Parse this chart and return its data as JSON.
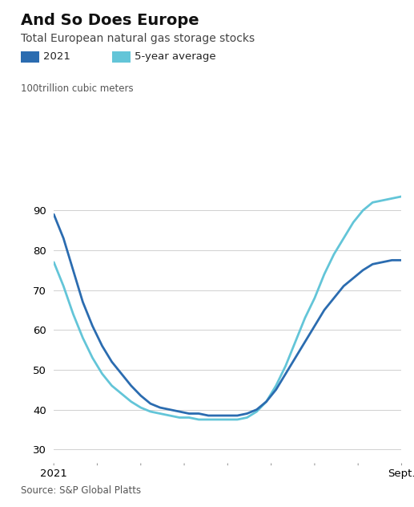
{
  "title": "And So Does Europe",
  "subtitle": "Total European natural gas storage stocks",
  "ylabel": "100trillion cubic meters",
  "source": "Source: S&P Global Platts",
  "xlabel_start": "2021",
  "xlabel_end": "Sept.",
  "ylim": [
    27,
    97
  ],
  "yticks": [
    30,
    40,
    50,
    60,
    70,
    80,
    90
  ],
  "legend_2021": "2021",
  "legend_avg": "5-year average",
  "color_2021": "#2b6cb0",
  "color_avg": "#63c5d8",
  "line_width": 2.0,
  "x_2021": [
    0,
    1,
    2,
    3,
    4,
    5,
    6,
    7,
    8,
    9,
    10,
    11,
    12,
    13,
    14,
    15,
    16,
    17,
    18,
    19,
    20,
    21,
    22,
    23,
    24,
    25,
    26,
    27,
    28,
    29,
    30,
    31,
    32,
    33,
    34,
    35,
    36
  ],
  "y_2021": [
    89,
    83,
    75,
    67,
    61,
    56,
    52,
    49,
    46,
    43.5,
    41.5,
    40.5,
    40,
    39.5,
    39,
    39,
    38.5,
    38.5,
    38.5,
    38.5,
    39,
    40,
    42,
    45,
    49,
    53,
    57,
    61,
    65,
    68,
    71,
    73,
    75,
    76.5,
    77,
    77.5,
    77.5
  ],
  "x_avg": [
    0,
    1,
    2,
    3,
    4,
    5,
    6,
    7,
    8,
    9,
    10,
    11,
    12,
    13,
    14,
    15,
    16,
    17,
    18,
    19,
    20,
    21,
    22,
    23,
    24,
    25,
    26,
    27,
    28,
    29,
    30,
    31,
    32,
    33,
    34,
    35,
    36
  ],
  "y_avg": [
    77,
    71,
    64,
    58,
    53,
    49,
    46,
    44,
    42,
    40.5,
    39.5,
    39,
    38.5,
    38,
    38,
    37.5,
    37.5,
    37.5,
    37.5,
    37.5,
    38,
    39.5,
    42,
    46,
    51,
    57,
    63,
    68,
    74,
    79,
    83,
    87,
    90,
    92,
    92.5,
    93,
    93.5
  ],
  "bg_color": "#ffffff",
  "grid_color": "#d0d0d0",
  "num_xticks": 9
}
